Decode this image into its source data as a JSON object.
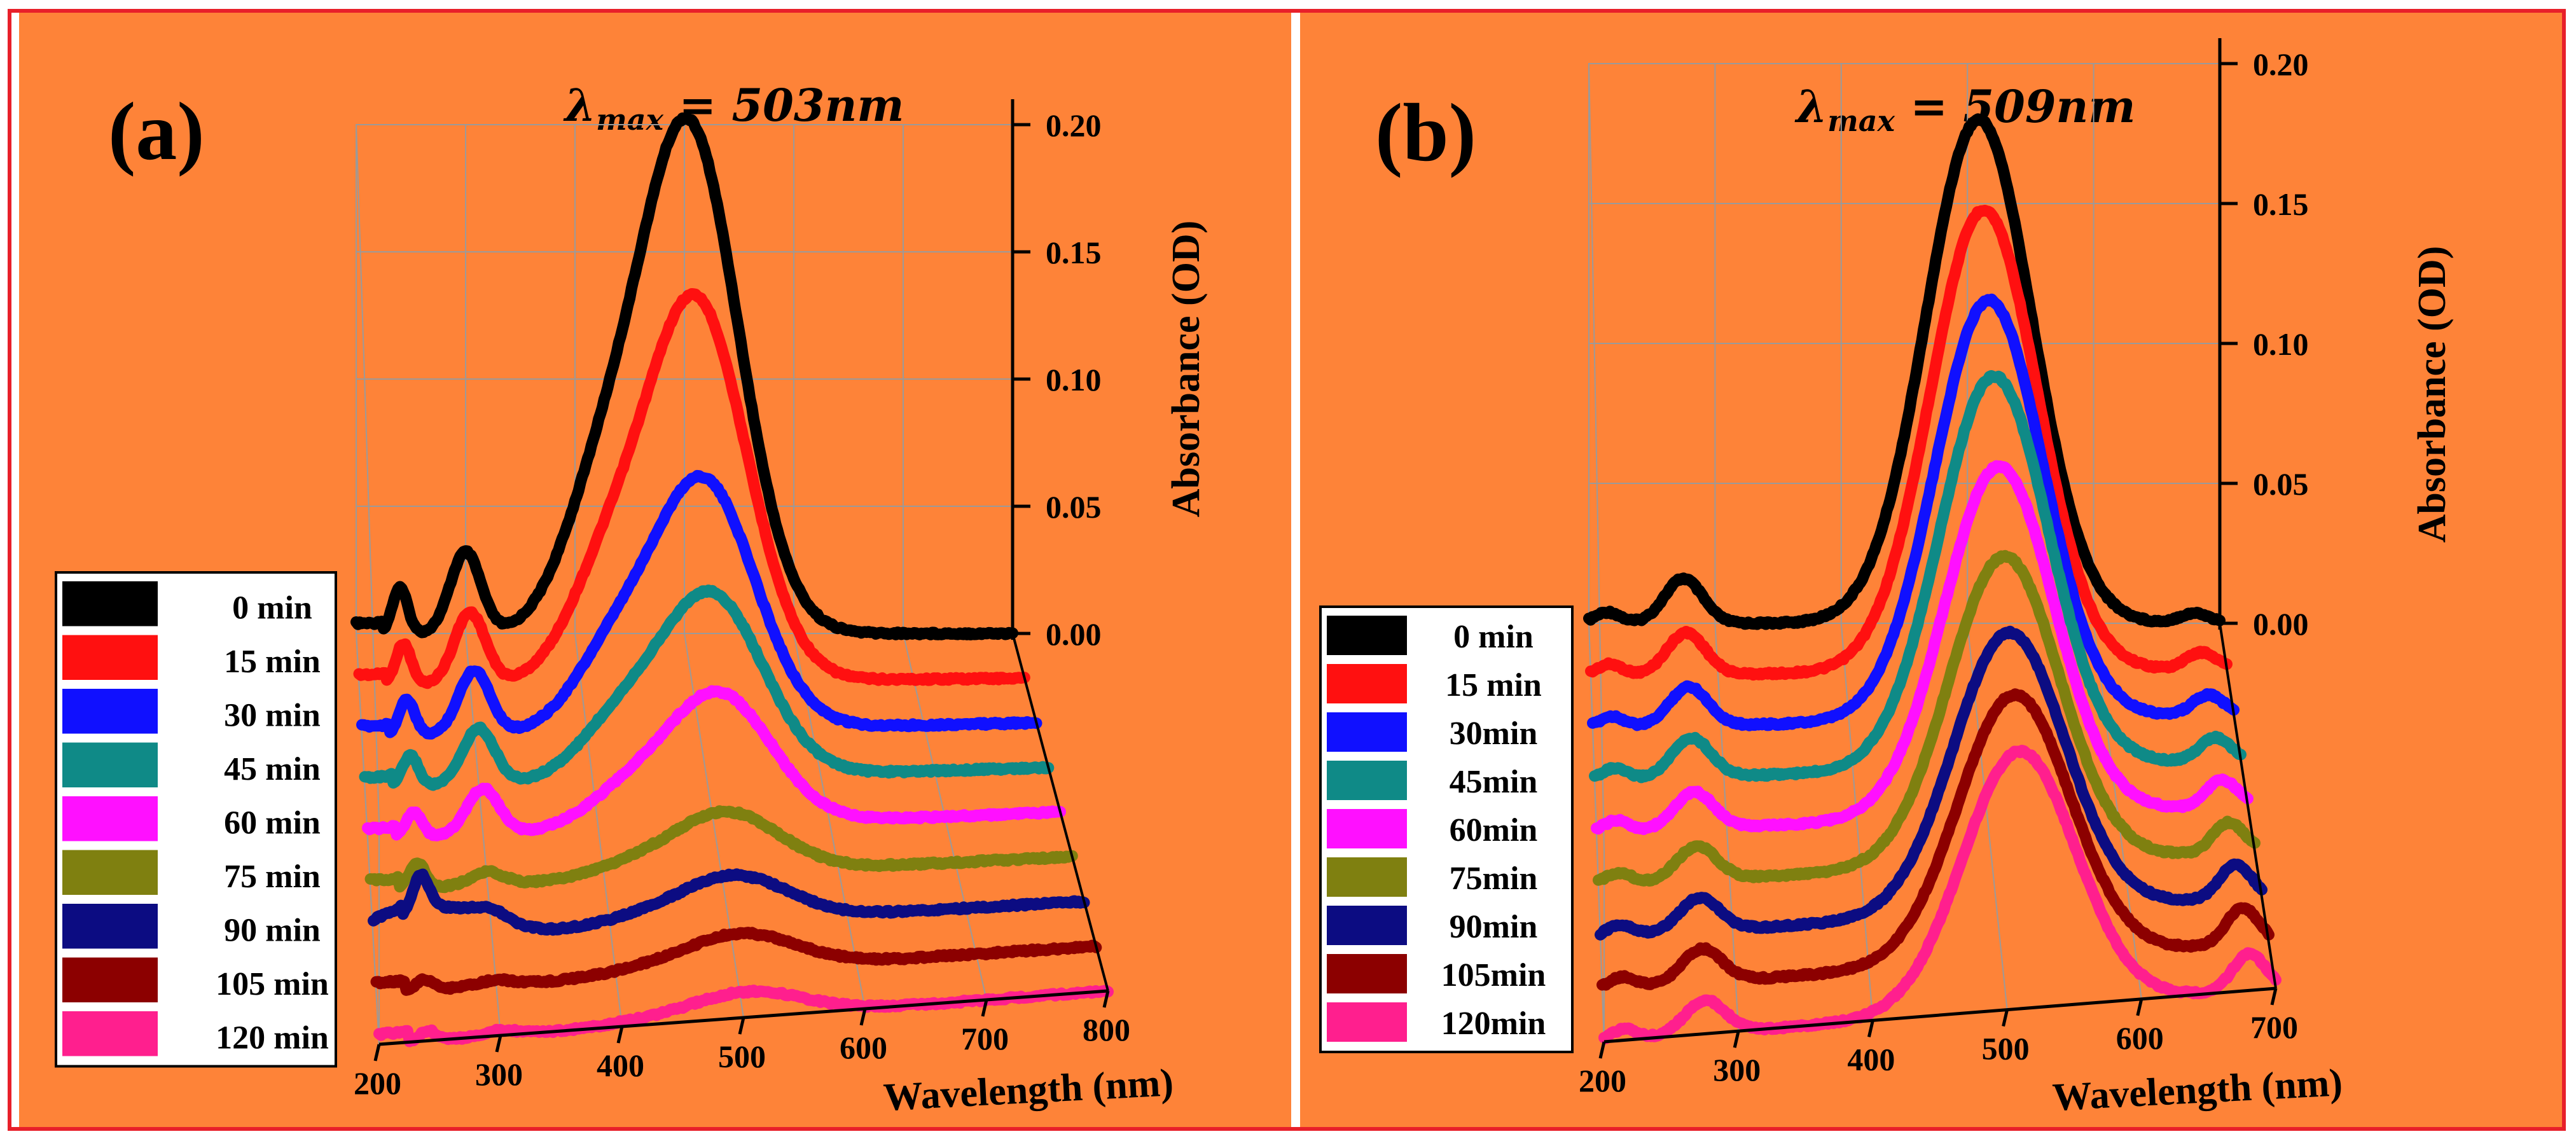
{
  "chart_data": [
    {
      "type": "line",
      "panel_label": "(a)",
      "annotation": {
        "symbol": "λ",
        "subscript": "max",
        "equals_text": "= 503",
        "unit": "nm"
      },
      "xlabel": "Wavelength (nm)",
      "ylabel": "Absorbance (OD)",
      "x_ticks": [
        "200",
        "300",
        "400",
        "500",
        "600",
        "700",
        "800"
      ],
      "y_ticks": [
        "0.00",
        "0.05",
        "0.10",
        "0.15",
        "0.20"
      ],
      "xlim": [
        200,
        800
      ],
      "ylim": [
        0,
        0.2
      ],
      "lambda_max": 503,
      "series": [
        {
          "name": "0 min",
          "color": "#000000",
          "peak": 0.2,
          "band300": 0.032,
          "band240": 0.018,
          "shoulder": 0.07
        },
        {
          "name": "15 min",
          "color": "#ff1010",
          "peak": 0.15,
          "band300": 0.028,
          "band240": 0.016,
          "shoulder": 0.055
        },
        {
          "name": "30 min",
          "color": "#1010ff",
          "peak": 0.098,
          "band300": 0.025,
          "band240": 0.014,
          "shoulder": 0.04
        },
        {
          "name": "45 min",
          "color": "#0f8a87",
          "peak": 0.072,
          "band300": 0.022,
          "band240": 0.012,
          "shoulder": 0.03
        },
        {
          "name": "60 min",
          "color": "#ff10ff",
          "peak": 0.052,
          "band300": 0.018,
          "band240": 0.01,
          "shoulder": 0.018
        },
        {
          "name": "75 min",
          "color": "#7f8010",
          "peak": 0.024,
          "band300": 0.005,
          "band240": 0.01,
          "shoulder": 0.006
        },
        {
          "name": "90 min",
          "color": "#0c0c82",
          "peak": 0.018,
          "band300": 0.004,
          "band240": 0.014,
          "shoulder": 0.004
        },
        {
          "name": "105 min",
          "color": "#8c0000",
          "peak": 0.014,
          "band300": 0.002,
          "band240": 0.004,
          "shoulder": 0.003
        },
        {
          "name": "120 min",
          "color": "#ff1f8e",
          "peak": 0.01,
          "band300": 0.002,
          "band240": 0.004,
          "shoulder": 0.002
        }
      ]
    },
    {
      "type": "line",
      "panel_label": "(b)",
      "annotation": {
        "symbol": "λ",
        "subscript": "max",
        "equals_text": "= 509",
        "unit": "nm"
      },
      "xlabel": "Wavelength (nm)",
      "ylabel": "Absorbance (OD)",
      "x_ticks": [
        "200",
        "300",
        "400",
        "500",
        "600",
        "700"
      ],
      "y_ticks": [
        "0.00",
        "0.05",
        "0.10",
        "0.15",
        "0.20"
      ],
      "xlim": [
        200,
        700
      ],
      "ylim": [
        0,
        0.2
      ],
      "lambda_max": 509,
      "series": [
        {
          "name": "0  min",
          "color": "#000000",
          "peak": 0.18,
          "band300": 0.016,
          "end": 0.006
        },
        {
          "name": "15 min",
          "color": "#ff1010",
          "peak": 0.165,
          "band300": 0.015,
          "end": 0.01
        },
        {
          "name": "30min",
          "color": "#1010ff",
          "peak": 0.15,
          "band300": 0.014,
          "end": 0.012
        },
        {
          "name": "45min",
          "color": "#0f8a87",
          "peak": 0.14,
          "band300": 0.014,
          "end": 0.014
        },
        {
          "name": "60min",
          "color": "#ff10ff",
          "peak": 0.125,
          "band300": 0.013,
          "end": 0.016
        },
        {
          "name": "75min",
          "color": "#7f8010",
          "peak": 0.11,
          "band300": 0.012,
          "end": 0.018
        },
        {
          "name": "90min",
          "color": "#0c0c82",
          "peak": 0.1,
          "band300": 0.012,
          "end": 0.02
        },
        {
          "name": "105min",
          "color": "#8c0000",
          "peak": 0.095,
          "band300": 0.012,
          "end": 0.022
        },
        {
          "name": "120min",
          "color": "#ff1f8e",
          "peak": 0.092,
          "band300": 0.012,
          "end": 0.022
        }
      ]
    }
  ]
}
